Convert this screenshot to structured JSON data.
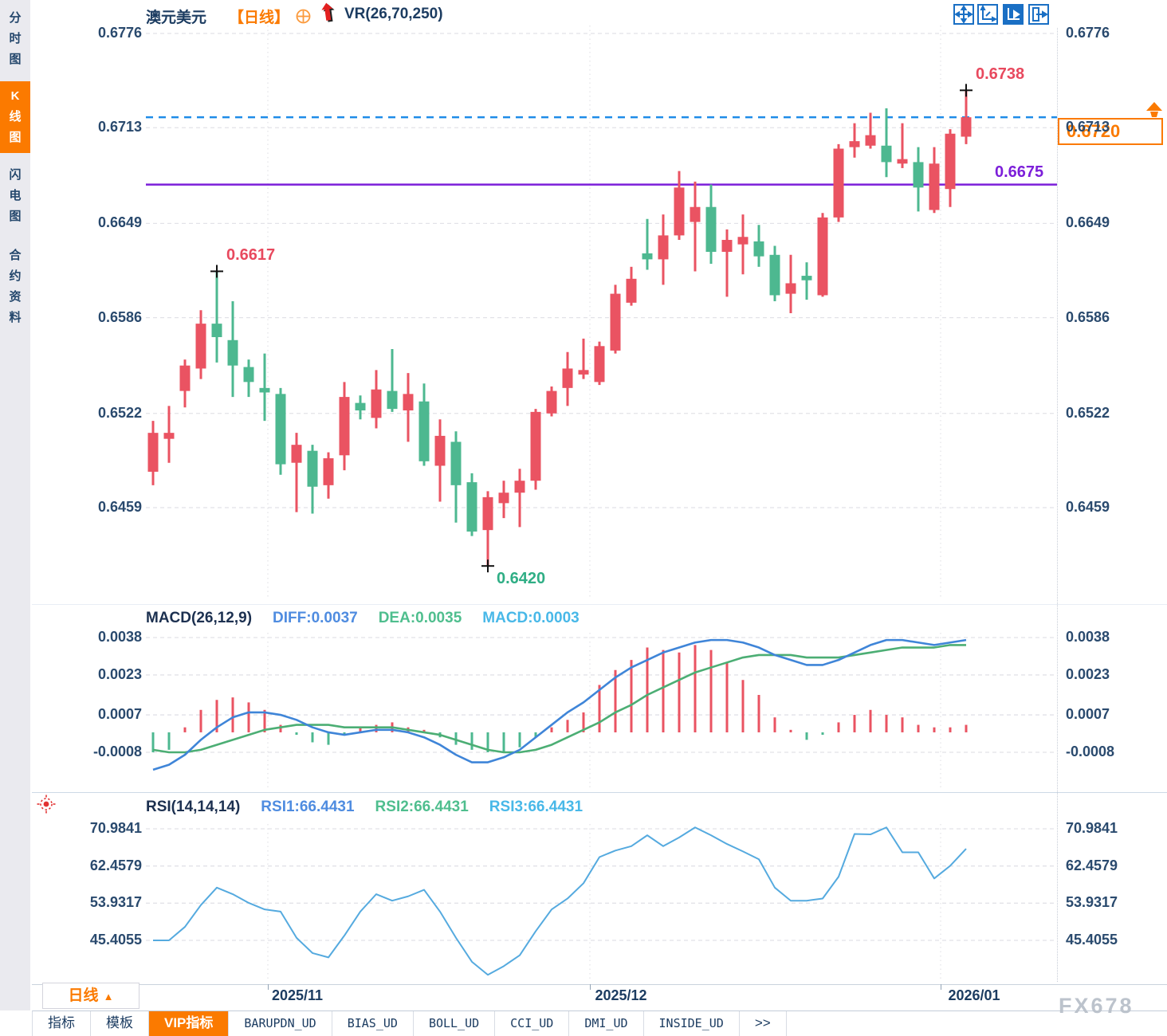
{
  "colors": {
    "accent_orange": "#fb7a00",
    "up": "#ea5362",
    "down": "#4db890",
    "current_line": "#1f8ce8",
    "support_line": "#7c1fd9",
    "diff_line": "#3f85d8",
    "dea_line": "#4cae74",
    "rsi_line": "#55aadf",
    "ann_red": "#e8495e",
    "ann_green": "#2fae85",
    "grid": "#e2e2e8"
  },
  "sidebar": {
    "items": [
      {
        "label": "分时图",
        "active": false
      },
      {
        "label": "K线图",
        "active": true
      },
      {
        "label": "闪电图",
        "active": false
      },
      {
        "label": "合约资料",
        "active": false
      }
    ]
  },
  "header": {
    "symbol": "澳元美元",
    "timeframe_tag": "【日线】",
    "indicator": "VR(26,70,250)"
  },
  "macd_row": {
    "title": "MACD(26,12,9)",
    "diff": "DIFF:0.0037",
    "dea": "DEA:0.0035",
    "macd": "MACD:0.0003"
  },
  "rsi_row": {
    "title": "RSI(14,14,14)",
    "rsi1": "RSI1:66.4431",
    "rsi2": "RSI2:66.4431",
    "rsi3": "RSI3:66.4431"
  },
  "footer": {
    "timeframe": "日线",
    "timeframe_arrow": "▲",
    "tabs": [
      {
        "label": "指标",
        "active": false
      },
      {
        "label": "模板",
        "active": false
      },
      {
        "label": "VIP指标",
        "active": true
      },
      {
        "label": "BARUPDN_UD",
        "active": false
      },
      {
        "label": "BIAS_UD",
        "active": false
      },
      {
        "label": "BOLL_UD",
        "active": false
      },
      {
        "label": "CCI_UD",
        "active": false
      },
      {
        "label": "DMI_UD",
        "active": false
      },
      {
        "label": "INSIDE_UD",
        "active": false
      },
      {
        "label": ">>",
        "active": false
      }
    ]
  },
  "watermark": "FX678",
  "chart_data": {
    "type": "candlestick+macd+rsi",
    "symbol": "澳元美元",
    "period": "日线",
    "price_axis": [
      "0.6776",
      "0.6713",
      "0.6649",
      "0.6586",
      "0.6522",
      "0.6459"
    ],
    "x_dates": [
      "2025/11",
      "2025/12",
      "2026/01"
    ],
    "candles": [
      [
        0.6483,
        0.6517,
        0.6474,
        0.6509
      ],
      [
        0.6505,
        0.6527,
        0.6489,
        0.6509
      ],
      [
        0.6537,
        0.6558,
        0.6526,
        0.6554
      ],
      [
        0.6552,
        0.6591,
        0.6545,
        0.6582
      ],
      [
        0.6582,
        0.6617,
        0.6556,
        0.6573
      ],
      [
        0.6571,
        0.6597,
        0.6533,
        0.6554
      ],
      [
        0.6553,
        0.6558,
        0.6533,
        0.6543
      ],
      [
        0.6539,
        0.6562,
        0.6517,
        0.6536
      ],
      [
        0.6535,
        0.6539,
        0.6481,
        0.6488
      ],
      [
        0.6489,
        0.6509,
        0.6456,
        0.6501
      ],
      [
        0.6497,
        0.6501,
        0.6455,
        0.6473
      ],
      [
        0.6474,
        0.6496,
        0.6465,
        0.6492
      ],
      [
        0.6494,
        0.6543,
        0.6484,
        0.6533
      ],
      [
        0.6529,
        0.6534,
        0.6518,
        0.6524
      ],
      [
        0.6519,
        0.6551,
        0.6512,
        0.6538
      ],
      [
        0.6537,
        0.6565,
        0.6523,
        0.6525
      ],
      [
        0.6524,
        0.6549,
        0.6503,
        0.6535
      ],
      [
        0.653,
        0.6542,
        0.6487,
        0.649
      ],
      [
        0.6487,
        0.6518,
        0.6463,
        0.6507
      ],
      [
        0.6503,
        0.651,
        0.6449,
        0.6474
      ],
      [
        0.6476,
        0.6482,
        0.644,
        0.6443
      ],
      [
        0.6444,
        0.647,
        0.642,
        0.6466
      ],
      [
        0.6462,
        0.6477,
        0.6452,
        0.6469
      ],
      [
        0.6469,
        0.6485,
        0.6446,
        0.6477
      ],
      [
        0.6477,
        0.6525,
        0.6471,
        0.6523
      ],
      [
        0.6522,
        0.654,
        0.652,
        0.6537
      ],
      [
        0.6539,
        0.6563,
        0.6527,
        0.6552
      ],
      [
        0.6548,
        0.6572,
        0.6545,
        0.6551
      ],
      [
        0.6543,
        0.657,
        0.6541,
        0.6567
      ],
      [
        0.6564,
        0.6608,
        0.6562,
        0.6602
      ],
      [
        0.6596,
        0.662,
        0.6594,
        0.6612
      ],
      [
        0.6629,
        0.6652,
        0.6618,
        0.6625
      ],
      [
        0.6625,
        0.6655,
        0.6608,
        0.6641
      ],
      [
        0.6641,
        0.6684,
        0.6638,
        0.6673
      ],
      [
        0.665,
        0.6677,
        0.6617,
        0.666
      ],
      [
        0.666,
        0.6675,
        0.6622,
        0.663
      ],
      [
        0.663,
        0.6645,
        0.66,
        0.6638
      ],
      [
        0.6635,
        0.6655,
        0.6615,
        0.664
      ],
      [
        0.6637,
        0.6648,
        0.662,
        0.6627
      ],
      [
        0.6628,
        0.6634,
        0.6597,
        0.6601
      ],
      [
        0.6602,
        0.6628,
        0.6589,
        0.6609
      ],
      [
        0.6614,
        0.6623,
        0.6598,
        0.6611
      ],
      [
        0.6601,
        0.6656,
        0.66,
        0.6653
      ],
      [
        0.6653,
        0.6702,
        0.665,
        0.6699
      ],
      [
        0.67,
        0.6716,
        0.6693,
        0.6704
      ],
      [
        0.6701,
        0.6723,
        0.6699,
        0.6708
      ],
      [
        0.6701,
        0.6726,
        0.668,
        0.669
      ],
      [
        0.6689,
        0.6716,
        0.6686,
        0.6692
      ],
      [
        0.669,
        0.67,
        0.6657,
        0.6673
      ],
      [
        0.6658,
        0.67,
        0.6656,
        0.6689
      ],
      [
        0.6672,
        0.6712,
        0.666,
        0.6709
      ],
      [
        0.6707,
        0.6738,
        0.6702,
        0.672
      ]
    ],
    "markers": [
      {
        "index": 5,
        "price": 0.6617,
        "label": "0.6617",
        "color": "#e8495e",
        "placement": "above-right"
      },
      {
        "index": 22,
        "price": 0.642,
        "label": "0.6420",
        "color": "#2fae85",
        "placement": "below-right"
      },
      {
        "index": 52,
        "price": 0.6738,
        "label": "0.6738",
        "color": "#e8495e",
        "placement": "above-right"
      }
    ],
    "hlines": [
      {
        "price": 0.6675,
        "style": "solid",
        "color": "#7c1fd9",
        "label": "0.6675"
      },
      {
        "price": 0.672,
        "style": "dashed",
        "color": "#1f8ce8",
        "label": ""
      }
    ],
    "current_price": {
      "text": "0.6720"
    },
    "macd": {
      "axis": [
        "0.0038",
        "0.0023",
        "0.0007",
        "-0.0008"
      ],
      "hist": [
        -0.0008,
        -0.0007,
        0.0002,
        0.0009,
        0.0013,
        0.0014,
        0.0012,
        0.0009,
        0.0003,
        -0.0001,
        -0.0004,
        -0.0005,
        -0.0001,
        0.0002,
        0.0003,
        0.0004,
        0.0002,
        0.0001,
        -0.0002,
        -0.0005,
        -0.0007,
        -0.0008,
        -0.0008,
        -0.0006,
        -0.0002,
        0.0002,
        0.0005,
        0.0008,
        0.0019,
        0.0025,
        0.0029,
        0.0034,
        0.0033,
        0.0032,
        0.0035,
        0.0033,
        0.0028,
        0.0021,
        0.0015,
        0.0006,
        0.0001,
        -0.0003,
        -0.0001,
        0.0004,
        0.0007,
        0.0009,
        0.0007,
        0.0006,
        0.0003,
        0.0002,
        0.0002,
        0.0003
      ],
      "diff": [
        -0.0015,
        -0.0013,
        -0.0009,
        -0.0003,
        0.0002,
        0.0006,
        0.0008,
        0.0008,
        0.0007,
        0.0005,
        0.0002,
        0.0,
        -0.0001,
        0.0,
        0.0001,
        0.0001,
        0.0,
        -0.0002,
        -0.0005,
        -0.0009,
        -0.0012,
        -0.0012,
        -0.001,
        -0.0007,
        -0.0002,
        0.0003,
        0.0008,
        0.0012,
        0.0017,
        0.0022,
        0.0026,
        0.0029,
        0.0032,
        0.0034,
        0.0036,
        0.0037,
        0.0037,
        0.0036,
        0.0034,
        0.0031,
        0.0029,
        0.0027,
        0.0027,
        0.0029,
        0.0032,
        0.0035,
        0.0037,
        0.0037,
        0.0036,
        0.0035,
        0.0036,
        0.0037
      ],
      "dea": [
        -0.0007,
        -0.0008,
        -0.0008,
        -0.0007,
        -0.0005,
        -0.0003,
        -0.0001,
        0.0001,
        0.0002,
        0.0003,
        0.0003,
        0.0003,
        0.0002,
        0.0002,
        0.0002,
        0.0002,
        0.0001,
        0.0,
        -0.0001,
        -0.0003,
        -0.0005,
        -0.0007,
        -0.0008,
        -0.0008,
        -0.0007,
        -0.0005,
        -0.0002,
        0.0001,
        0.0004,
        0.0008,
        0.0011,
        0.0015,
        0.0018,
        0.0021,
        0.0024,
        0.0026,
        0.0028,
        0.003,
        0.0031,
        0.0031,
        0.0031,
        0.003,
        0.003,
        0.003,
        0.0031,
        0.0032,
        0.0033,
        0.0034,
        0.0034,
        0.0034,
        0.0035,
        0.0035
      ]
    },
    "rsi": {
      "axis": [
        "70.9841",
        "62.4579",
        "53.9317",
        "45.4055"
      ],
      "values": [
        45.4,
        45.4,
        48.5,
        53.5,
        57.5,
        56.0,
        54.0,
        52.5,
        52.0,
        46.0,
        42.5,
        41.5,
        46.5,
        52.0,
        56.0,
        54.5,
        55.5,
        57.0,
        52.0,
        46.0,
        40.5,
        37.5,
        39.5,
        42.0,
        47.5,
        52.5,
        55.0,
        58.5,
        64.5,
        66.0,
        67.0,
        69.5,
        67.0,
        69.0,
        71.3,
        69.5,
        67.5,
        65.8,
        64.0,
        57.5,
        54.5,
        54.5,
        55.0,
        60.0,
        69.8,
        69.7,
        71.3,
        65.6,
        65.6,
        59.6,
        62.5,
        66.4
      ]
    }
  }
}
